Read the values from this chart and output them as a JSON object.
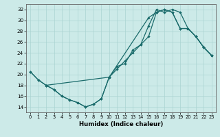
{
  "xlabel": "Humidex (Indice chaleur)",
  "xlim": [
    -0.5,
    23.5
  ],
  "ylim": [
    13,
    33
  ],
  "yticks": [
    14,
    16,
    18,
    20,
    22,
    24,
    26,
    28,
    30,
    32
  ],
  "xticks": [
    0,
    1,
    2,
    3,
    4,
    5,
    6,
    7,
    8,
    9,
    10,
    11,
    12,
    13,
    14,
    15,
    16,
    17,
    18,
    19,
    20,
    21,
    22,
    23
  ],
  "background_color": "#cceae8",
  "grid_color": "#aad4d2",
  "line_color": "#1a6b6b",
  "line1_x": [
    0,
    1,
    2,
    3,
    4,
    5,
    6,
    7,
    8,
    9,
    10,
    11,
    12,
    13,
    14,
    15,
    16,
    17,
    18,
    19,
    20,
    21,
    22,
    23
  ],
  "line1_y": [
    20.5,
    19.0,
    18.0,
    17.2,
    16.0,
    15.3,
    14.8,
    14.0,
    14.5,
    15.5,
    19.5,
    21.5,
    22.0,
    24.5,
    25.5,
    29.0,
    32.0,
    31.5,
    32.0,
    31.5,
    28.5,
    27.0,
    25.0,
    23.5
  ],
  "line2_x": [
    0,
    1,
    2,
    10,
    11,
    12,
    13,
    14,
    15,
    16,
    17,
    18,
    19,
    20,
    21,
    22,
    23
  ],
  "line2_y": [
    20.5,
    19.0,
    18.0,
    19.5,
    21.0,
    22.5,
    24.0,
    25.5,
    27.0,
    31.5,
    32.0,
    31.5,
    28.5,
    28.5,
    27.0,
    25.0,
    23.5
  ],
  "line3_x": [
    2,
    3,
    4,
    5,
    6,
    7,
    8,
    9,
    10,
    15,
    16,
    17,
    18,
    19,
    20,
    21,
    22,
    23
  ],
  "line3_y": [
    18.0,
    17.2,
    16.0,
    15.3,
    14.8,
    14.0,
    14.5,
    15.5,
    19.5,
    30.5,
    31.5,
    32.0,
    31.5,
    28.5,
    28.5,
    27.0,
    25.0,
    23.5
  ]
}
